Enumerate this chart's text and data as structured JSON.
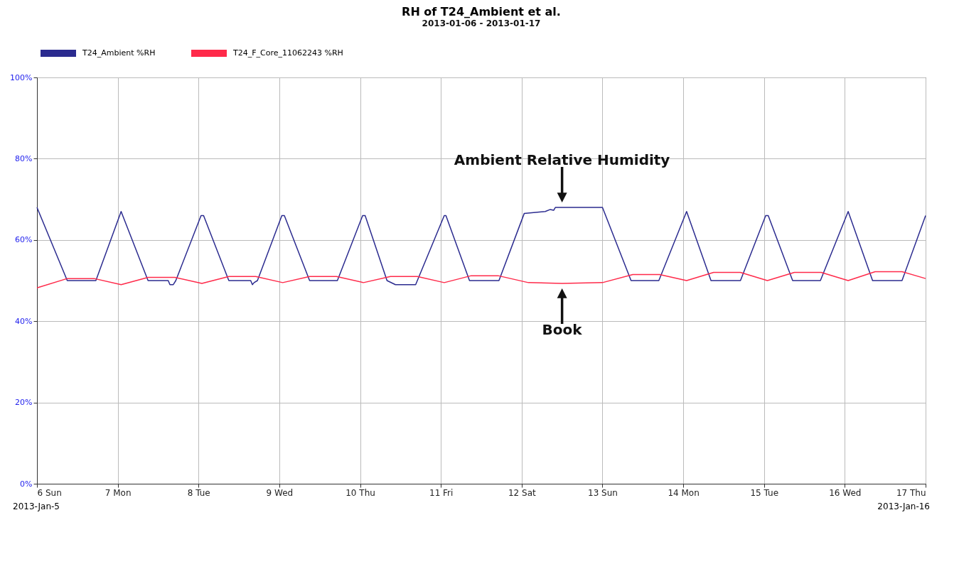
{
  "chart_data": {
    "type": "line",
    "title": "RH of T24_Ambient et al.",
    "subtitle": "2013-01-06 - 2013-01-17",
    "xlim": [
      "2013-01-06T00:00",
      "2013-01-17T00:00"
    ],
    "xticks": [
      {
        "value": "2013-01-06T00:00",
        "label": "6 Sun"
      },
      {
        "value": "2013-01-07T00:00",
        "label": "7 Mon"
      },
      {
        "value": "2013-01-08T00:00",
        "label": "8 Tue"
      },
      {
        "value": "2013-01-09T00:00",
        "label": "9 Wed"
      },
      {
        "value": "2013-01-10T00:00",
        "label": "10 Thu"
      },
      {
        "value": "2013-01-11T00:00",
        "label": "11 Fri"
      },
      {
        "value": "2013-01-12T00:00",
        "label": "12 Sat"
      },
      {
        "value": "2013-01-13T00:00",
        "label": "13 Sun"
      },
      {
        "value": "2013-01-14T00:00",
        "label": "14 Mon"
      },
      {
        "value": "2013-01-15T00:00",
        "label": "15 Tue"
      },
      {
        "value": "2013-01-16T00:00",
        "label": "16 Wed"
      },
      {
        "value": "2013-01-17T00:00",
        "label": "17 Thu"
      }
    ],
    "ylim": [
      0,
      100
    ],
    "yticks": [
      {
        "value": 0,
        "label": "0%"
      },
      {
        "value": 20,
        "label": "20%"
      },
      {
        "value": 40,
        "label": "40%"
      },
      {
        "value": 60,
        "label": "60%"
      },
      {
        "value": 80,
        "label": "80%"
      },
      {
        "value": 100,
        "label": "100%"
      }
    ],
    "grid": true,
    "legend": "top",
    "annotations": [
      {
        "text": "Ambient Relative Humidity",
        "x": "2013-01-12T12:00",
        "y": 68
      },
      {
        "text": "Book",
        "x": "2013-01-12T12:00",
        "y": 49.3
      },
      "2013-Jan-5",
      "2013-Jan-16"
    ],
    "series": [
      {
        "name": "T24_Ambient %RH",
        "color": "#2b2b8f",
        "x": [
          "2013-01-06T00:00",
          "2013-01-06T09:00",
          "2013-01-06T17:30",
          "2013-01-07T01:00",
          "2013-01-07T09:00",
          "2013-01-07T15:00",
          "2013-01-07T15:30",
          "2013-01-07T16:30",
          "2013-01-07T17:15",
          "2013-01-08T00:45",
          "2013-01-08T01:30",
          "2013-01-08T09:00",
          "2013-01-08T15:30",
          "2013-01-08T16:00",
          "2013-01-08T16:30",
          "2013-01-08T17:30",
          "2013-01-09T00:45",
          "2013-01-09T01:30",
          "2013-01-09T09:00",
          "2013-01-09T17:15",
          "2013-01-10T00:45",
          "2013-01-10T01:30",
          "2013-01-10T08:00",
          "2013-01-10T10:30",
          "2013-01-10T16:30",
          "2013-01-11T01:00",
          "2013-01-11T01:30",
          "2013-01-11T08:30",
          "2013-01-11T17:15",
          "2013-01-12T00:45",
          "2013-01-12T07:00",
          "2013-01-12T08:30",
          "2013-01-12T09:30",
          "2013-01-12T10:00",
          "2013-01-13T00:00",
          "2013-01-13T08:30",
          "2013-01-13T16:45",
          "2013-01-14T01:00",
          "2013-01-14T08:15",
          "2013-01-14T17:00",
          "2013-01-15T00:30",
          "2013-01-15T01:15",
          "2013-01-15T08:30",
          "2013-01-15T16:45",
          "2013-01-16T01:00",
          "2013-01-16T08:15",
          "2013-01-16T17:00",
          "2013-01-17T00:00"
        ],
        "values": [
          68,
          50,
          50,
          67,
          50,
          50,
          49,
          49,
          50,
          66,
          66,
          50,
          50,
          49,
          49.5,
          50,
          66,
          66,
          50,
          50,
          66,
          66,
          50,
          49,
          49,
          66,
          66,
          50,
          50,
          66.5,
          67,
          67.5,
          67.3,
          68,
          68,
          50,
          50,
          67,
          50,
          50,
          66,
          66,
          50,
          50,
          67,
          50,
          50,
          66
        ]
      },
      {
        "name": "T24_F_Core_11062243 %RH",
        "color": "#ff2a4a",
        "x": [
          "2013-01-06T00:00",
          "2013-01-06T09:00",
          "2013-01-06T17:00",
          "2013-01-07T01:00",
          "2013-01-07T09:00",
          "2013-01-07T17:00",
          "2013-01-08T01:00",
          "2013-01-08T09:00",
          "2013-01-08T17:00",
          "2013-01-09T01:00",
          "2013-01-09T09:00",
          "2013-01-09T17:00",
          "2013-01-10T01:00",
          "2013-01-10T09:00",
          "2013-01-10T17:00",
          "2013-01-11T01:00",
          "2013-01-11T09:00",
          "2013-01-11T17:00",
          "2013-01-12T02:00",
          "2013-01-12T12:00",
          "2013-01-13T00:00",
          "2013-01-13T09:00",
          "2013-01-13T17:00",
          "2013-01-14T01:00",
          "2013-01-14T09:00",
          "2013-01-14T17:00",
          "2013-01-15T01:00",
          "2013-01-15T09:00",
          "2013-01-15T17:00",
          "2013-01-16T01:00",
          "2013-01-16T09:00",
          "2013-01-16T17:00",
          "2013-01-17T00:00"
        ],
        "values": [
          48.2,
          50.5,
          50.5,
          49,
          50.8,
          50.8,
          49.3,
          51,
          51,
          49.5,
          51,
          51,
          49.5,
          51,
          51,
          49.5,
          51.2,
          51.2,
          49.5,
          49.3,
          49.5,
          51.5,
          51.5,
          50,
          52,
          52,
          50,
          52,
          52,
          50,
          52.2,
          52.2,
          50.5
        ]
      }
    ]
  }
}
